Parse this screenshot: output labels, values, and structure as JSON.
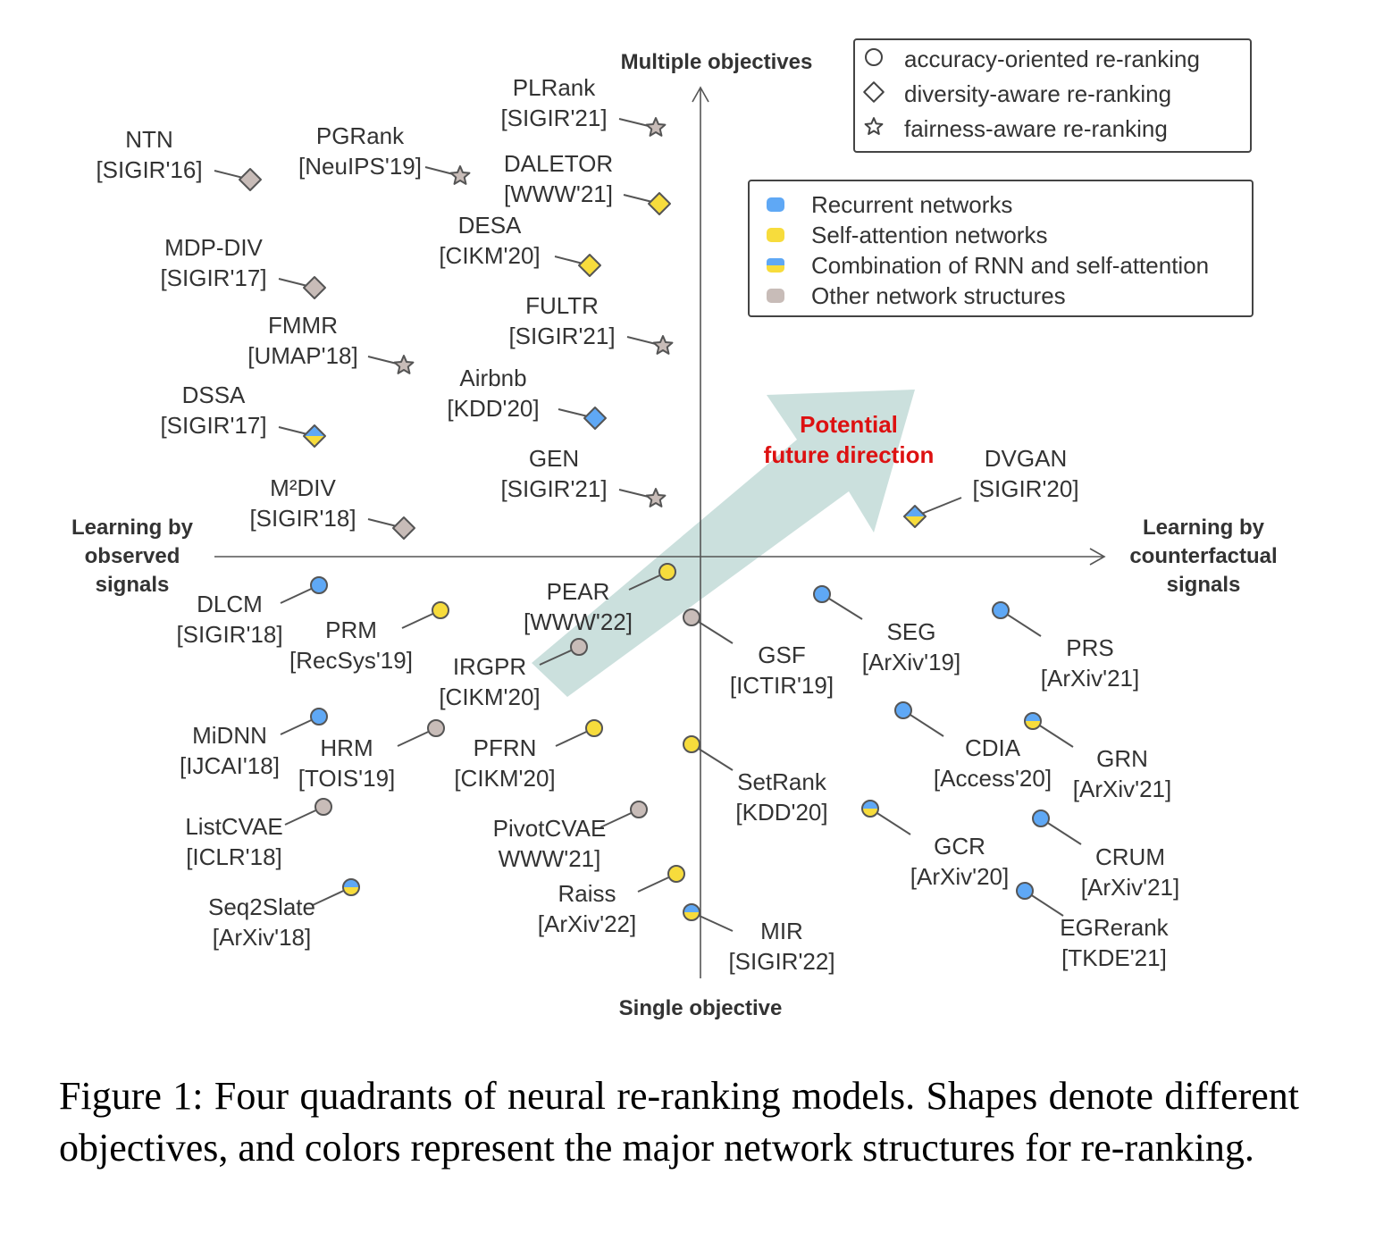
{
  "axes": {
    "top": "Multiple objectives",
    "bottom": "Single objective",
    "left": [
      "Learning by",
      "observed",
      "signals"
    ],
    "right": [
      "Learning by",
      "counterfactual",
      "signals"
    ]
  },
  "future_direction": [
    "Potential",
    "future direction"
  ],
  "legend_shapes": [
    {
      "shape": "circle",
      "label": "accuracy-oriented re-ranking"
    },
    {
      "shape": "diamond",
      "label": "diversity-aware re-ranking"
    },
    {
      "shape": "star",
      "label": "fairness-aware re-ranking"
    }
  ],
  "legend_colors": [
    {
      "key": "rnn",
      "label": "Recurrent networks"
    },
    {
      "key": "sa",
      "label": "Self-attention networks"
    },
    {
      "key": "combo",
      "label": "Combination of RNN and self-attention"
    },
    {
      "key": "other",
      "label": "Other network structures"
    }
  ],
  "colors": {
    "rnn": "#5fa8f5",
    "sa": "#f7dc3c",
    "other": "#c8bcb8",
    "axis": "#555555",
    "arrow": "#a9cbc7"
  },
  "models": [
    {
      "name": "NTN",
      "venue": "[SIGIR'16]",
      "shape": "diamond",
      "color": "other"
    },
    {
      "name": "PGRank",
      "venue": "[NeuIPS'19]",
      "shape": "star",
      "color": "other"
    },
    {
      "name": "PLRank",
      "venue": "[SIGIR'21]",
      "shape": "star",
      "color": "other"
    },
    {
      "name": "DALETOR",
      "venue": "[WWW'21]",
      "shape": "diamond",
      "color": "sa"
    },
    {
      "name": "DESA",
      "venue": "[CIKM'20]",
      "shape": "diamond",
      "color": "sa"
    },
    {
      "name": "MDP-DIV",
      "venue": "[SIGIR'17]",
      "shape": "diamond",
      "color": "other"
    },
    {
      "name": "FULTR",
      "venue": "[SIGIR'21]",
      "shape": "star",
      "color": "other"
    },
    {
      "name": "FMMR",
      "venue": "[UMAP'18]",
      "shape": "star",
      "color": "other"
    },
    {
      "name": "Airbnb",
      "venue": "[KDD'20]",
      "shape": "diamond",
      "color": "rnn"
    },
    {
      "name": "DSSA",
      "venue": "[SIGIR'17]",
      "shape": "diamond",
      "color": "combo"
    },
    {
      "name": "GEN",
      "venue": "[SIGIR'21]",
      "shape": "star",
      "color": "other"
    },
    {
      "name": "M²DIV",
      "venue": "[SIGIR'18]",
      "shape": "diamond",
      "color": "other"
    },
    {
      "name": "DVGAN",
      "venue": "[SIGIR'20]",
      "shape": "diamond",
      "color": "combo"
    },
    {
      "name": "DLCM",
      "venue": "[SIGIR'18]",
      "shape": "circle",
      "color": "rnn"
    },
    {
      "name": "PRM",
      "venue": "[RecSys'19]",
      "shape": "circle",
      "color": "sa"
    },
    {
      "name": "PEAR",
      "venue": "[WWW'22]",
      "shape": "circle",
      "color": "sa"
    },
    {
      "name": "IRGPR",
      "venue": "[CIKM'20]",
      "shape": "circle",
      "color": "other"
    },
    {
      "name": "GSF",
      "venue": "[ICTIR'19]",
      "shape": "circle",
      "color": "other"
    },
    {
      "name": "SEG",
      "venue": "[ArXiv'19]",
      "shape": "circle",
      "color": "rnn"
    },
    {
      "name": "PRS",
      "venue": "[ArXiv'21]",
      "shape": "circle",
      "color": "rnn"
    },
    {
      "name": "MiDNN",
      "venue": "[IJCAI'18]",
      "shape": "circle",
      "color": "rnn"
    },
    {
      "name": "HRM",
      "venue": "[TOIS'19]",
      "shape": "circle",
      "color": "other"
    },
    {
      "name": "PFRN",
      "venue": "[CIKM'20]",
      "shape": "circle",
      "color": "sa"
    },
    {
      "name": "SetRank",
      "venue": "[KDD'20]",
      "shape": "circle",
      "color": "sa"
    },
    {
      "name": "CDIA",
      "venue": "[Access'20]",
      "shape": "circle",
      "color": "rnn"
    },
    {
      "name": "GRN",
      "venue": "[ArXiv'21]",
      "shape": "circle",
      "color": "combo"
    },
    {
      "name": "ListCVAE",
      "venue": "[ICLR'18]",
      "shape": "circle",
      "color": "other"
    },
    {
      "name": "PivotCVAE",
      "venue": "WWW'21]",
      "shape": "circle",
      "color": "other"
    },
    {
      "name": "GCR",
      "venue": "[ArXiv'20]",
      "shape": "circle",
      "color": "combo"
    },
    {
      "name": "CRUM",
      "venue": "[ArXiv'21]",
      "shape": "circle",
      "color": "rnn"
    },
    {
      "name": "Raiss",
      "venue": "[ArXiv'22]",
      "shape": "circle",
      "color": "sa"
    },
    {
      "name": "Seq2Slate",
      "venue": "[ArXiv'18]",
      "shape": "circle",
      "color": "combo"
    },
    {
      "name": "MIR",
      "venue": "[SIGIR'22]",
      "shape": "circle",
      "color": "combo"
    },
    {
      "name": "EGRerank",
      "venue": "[TKDE'21]",
      "shape": "circle",
      "color": "rnn"
    }
  ],
  "caption": "Figure 1: Four quadrants of neural re-ranking models. Shapes denote different objectives, and colors represent the major network structures for re-ranking."
}
